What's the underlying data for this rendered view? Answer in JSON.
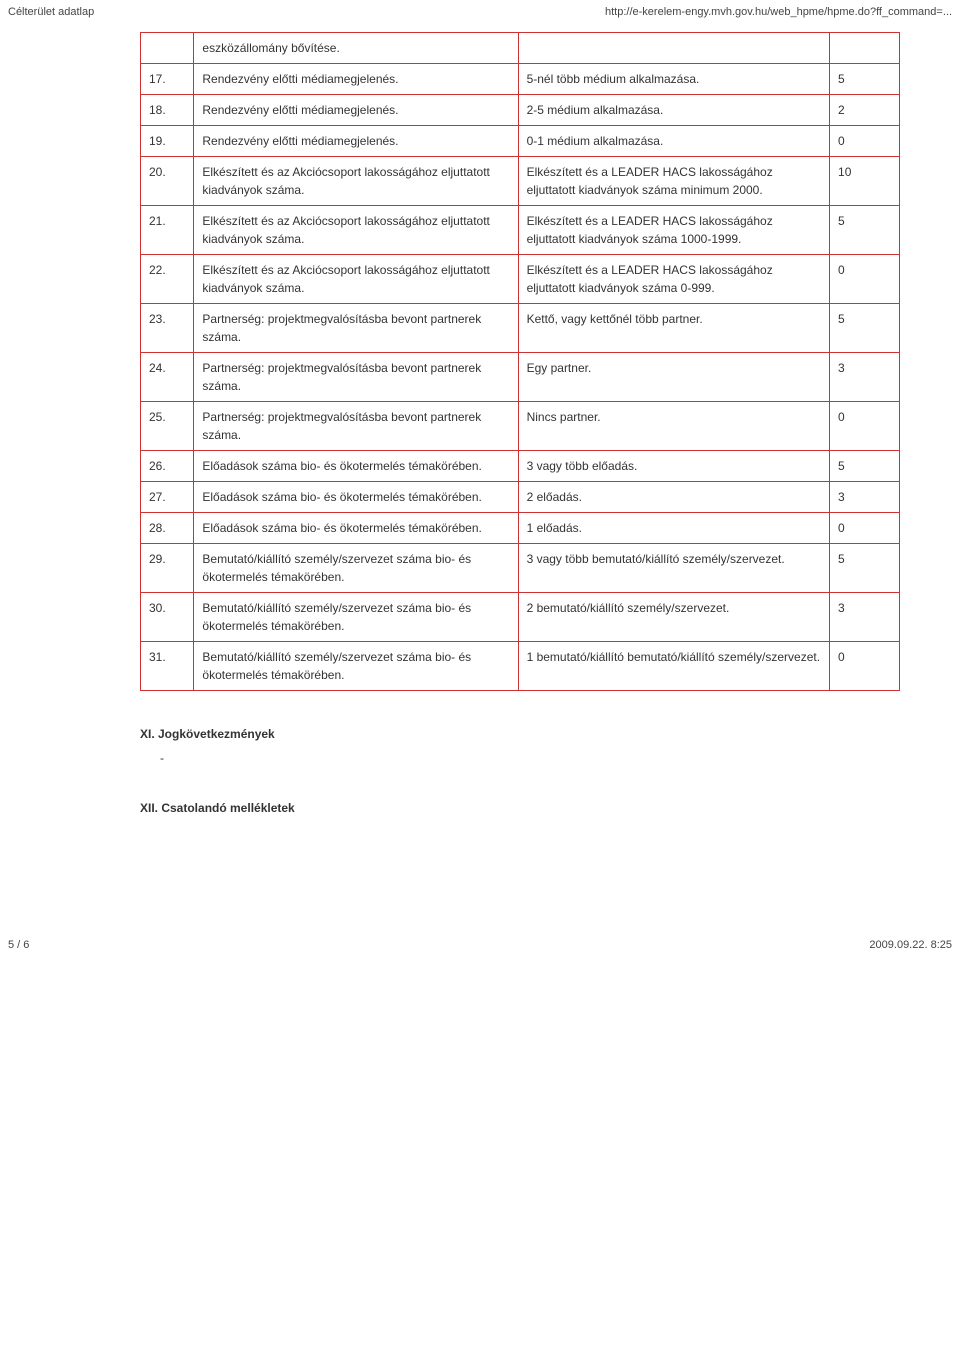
{
  "header": {
    "left": "Célterület adatlap",
    "right": "http://e-kerelem-engy.mvh.gov.hu/web_hpme/hpme.do?ff_command=..."
  },
  "footer": {
    "left": "5 / 6",
    "right": "2009.09.22. 8:25"
  },
  "top_text": "eszközállomány bővítése.",
  "rows": [
    {
      "n": "17.",
      "a": "Rendezvény előtti médiamegjelenés.",
      "b": "5-nél több médium alkalmazása.",
      "c": "5"
    },
    {
      "n": "18.",
      "a": "Rendezvény előtti médiamegjelenés.",
      "b": "2-5 médium alkalmazása.",
      "c": "2"
    },
    {
      "n": "19.",
      "a": "Rendezvény előtti médiamegjelenés.",
      "b": "0-1 médium alkalmazása.",
      "c": "0"
    },
    {
      "n": "20.",
      "a": "Elkészített és az Akciócsoport lakosságához eljuttatott kiadványok száma.",
      "b": "Elkészített és a LEADER HACS lakosságához eljuttatott kiadványok száma minimum 2000.",
      "c": "10"
    },
    {
      "n": "21.",
      "a": "Elkészített és az Akciócsoport lakosságához eljuttatott kiadványok száma.",
      "b": "Elkészített és a LEADER HACS lakosságához eljuttatott kiadványok száma 1000-1999.",
      "c": "5"
    },
    {
      "n": "22.",
      "a": "Elkészített és az Akciócsoport lakosságához eljuttatott kiadványok száma.",
      "b": "Elkészített és a LEADER HACS lakosságához eljuttatott kiadványok száma 0-999.",
      "c": "0"
    },
    {
      "n": "23.",
      "a": "Partnerség: projektmegvalósításba bevont partnerek száma.",
      "b": "Kettő, vagy kettőnél több partner.",
      "c": "5"
    },
    {
      "n": "24.",
      "a": "Partnerség: projektmegvalósításba bevont partnerek száma.",
      "b": "Egy partner.",
      "c": "3"
    },
    {
      "n": "25.",
      "a": "Partnerség: projektmegvalósításba bevont partnerek száma.",
      "b": "Nincs partner.",
      "c": "0"
    },
    {
      "n": "26.",
      "a": "Előadások száma bio- és ökotermelés témakörében.",
      "b": "3 vagy több előadás.",
      "c": "5"
    },
    {
      "n": "27.",
      "a": "Előadások száma bio- és ökotermelés témakörében.",
      "b": "2 előadás.",
      "c": "3"
    },
    {
      "n": "28.",
      "a": "Előadások száma bio- és ökotermelés témakörében.",
      "b": "1 előadás.",
      "c": "0"
    },
    {
      "n": "29.",
      "a": "Bemutató/kiállító személy/szervezet száma bio- és ökotermelés témakörében.",
      "b": "3 vagy több bemutató/kiállító személy/szervezet.",
      "c": "5"
    },
    {
      "n": "30.",
      "a": "Bemutató/kiállító személy/szervezet száma bio- és ökotermelés témakörében.",
      "b": "2 bemutató/kiállító személy/szervezet.",
      "c": "3"
    },
    {
      "n": "31.",
      "a": "Bemutató/kiállító személy/szervezet száma bio- és ökotermelés témakörében.",
      "b": "1 bemutató/kiállító bemutató/kiállító személy/szervezet.",
      "c": "0"
    }
  ],
  "section_xi": {
    "title": "XI. Jogkövetkezmények",
    "body": "-"
  },
  "section_xii": {
    "title": "XII. Csatolandó mellékletek"
  },
  "colors": {
    "border": "#c33",
    "text": "#333",
    "bg": "#ffffff"
  }
}
